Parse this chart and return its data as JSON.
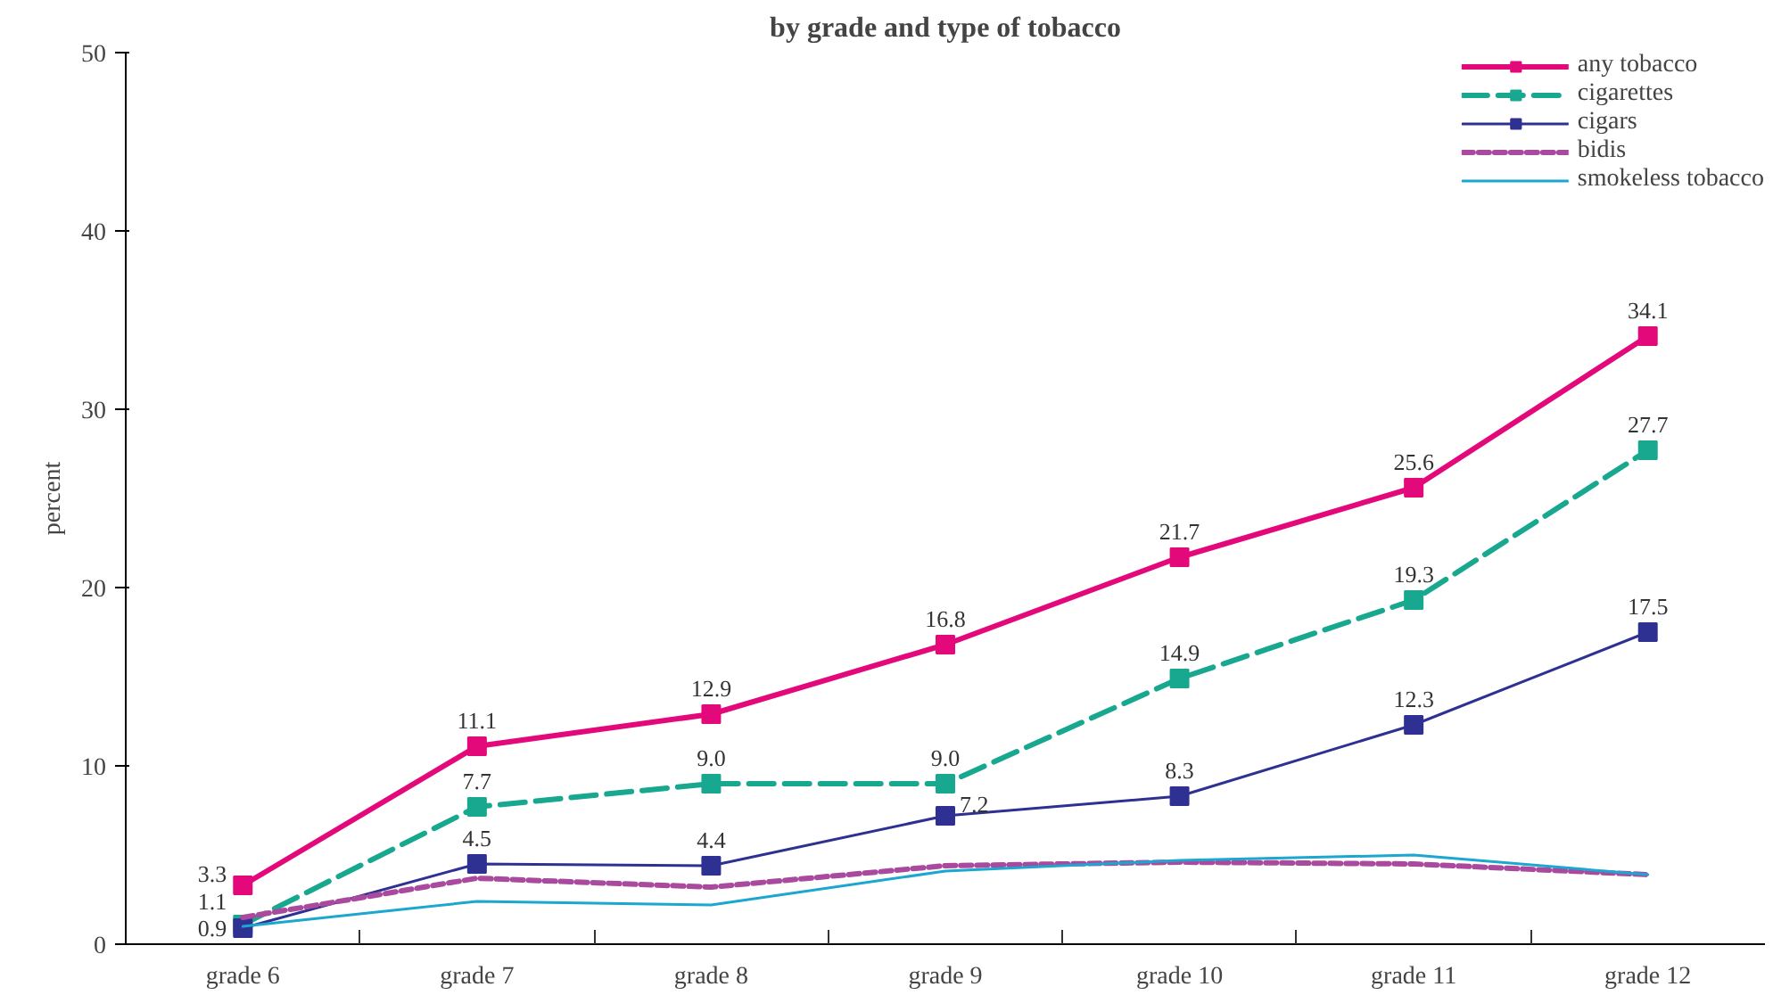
{
  "chart_data": {
    "type": "line",
    "title": "by grade and type of tobacco",
    "ylabel": "percent",
    "categories": [
      "grade 6",
      "grade 7",
      "grade 8",
      "grade 9",
      "grade 10",
      "grade 11",
      "grade 12"
    ],
    "ylim": [
      0,
      50
    ],
    "yticks": [
      0,
      10,
      20,
      30,
      40,
      50
    ],
    "grid": false,
    "legend": "top right",
    "series": [
      {
        "name": "any tobacco",
        "color": "#e4097a",
        "marker": "square",
        "line_style": "solid",
        "values": [
          3.3,
          11.1,
          12.9,
          16.8,
          21.7,
          25.6,
          34.1
        ],
        "value_labels": [
          "3.3",
          "11.1",
          "12.9",
          "16.8",
          "21.7",
          "25.6",
          "34.1"
        ]
      },
      {
        "name": "cigarettes",
        "color": "#18a88f",
        "marker": "square",
        "line_style": "dashed",
        "values": [
          1.1,
          7.7,
          9.0,
          9.0,
          14.9,
          19.3,
          27.7
        ],
        "value_labels": [
          "1.1",
          "7.7",
          "9.0",
          "9.0",
          "14.9",
          "19.3",
          "27.7"
        ]
      },
      {
        "name": "cigars",
        "color": "#2e3192",
        "marker": "square",
        "line_style": "solid",
        "values": [
          0.9,
          4.5,
          4.4,
          7.2,
          8.3,
          12.3,
          17.5
        ],
        "value_labels": [
          "0.9",
          "4.5",
          "4.4",
          "7.2",
          "8.3",
          "12.3",
          "17.5"
        ]
      },
      {
        "name": "bidis",
        "color": "#a94a9e",
        "marker": "none",
        "line_style": "dotted",
        "values": [
          1.5,
          3.7,
          3.2,
          4.4,
          4.6,
          4.5,
          3.9
        ]
      },
      {
        "name": "smokeless tobacco",
        "color": "#1ba7d0",
        "marker": "none",
        "line_style": "solid",
        "values": [
          1.0,
          2.4,
          2.2,
          4.1,
          4.7,
          5.0,
          3.9
        ]
      }
    ]
  }
}
